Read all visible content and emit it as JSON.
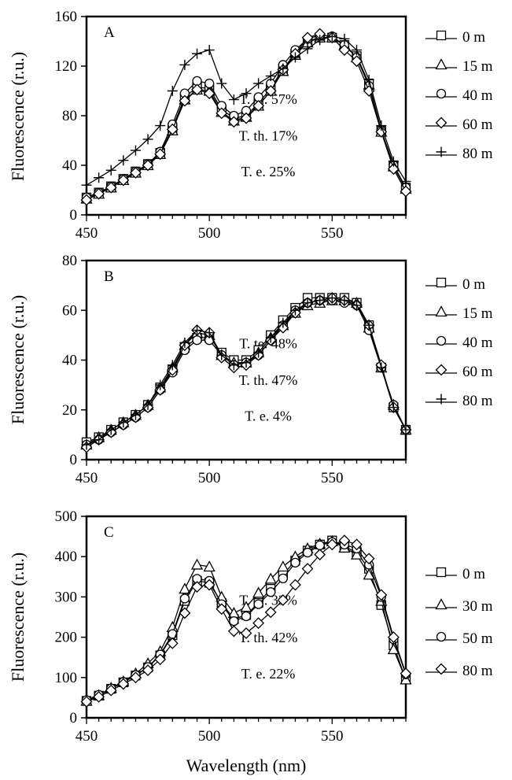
{
  "figure": {
    "xlabel": "Wavelength (nm)"
  },
  "chart_data": [
    {
      "type": "line",
      "panel": "A",
      "ylabel": "Fluorescence (r.u.)",
      "xlim": [
        450,
        580
      ],
      "ylim": [
        0,
        160
      ],
      "xticks": [
        450,
        500,
        550
      ],
      "yticks": [
        0,
        40,
        80,
        120,
        160
      ],
      "annotations": [
        "T. te. 57%",
        "T. th. 17%",
        "T. e. 25%"
      ],
      "x": [
        450,
        455,
        460,
        465,
        470,
        475,
        480,
        485,
        490,
        495,
        500,
        505,
        510,
        515,
        520,
        525,
        530,
        535,
        540,
        545,
        550,
        555,
        560,
        565,
        570,
        575,
        580
      ],
      "series": [
        {
          "name": "0 m",
          "marker": "square",
          "values": [
            14,
            18,
            23,
            29,
            35,
            41,
            50,
            70,
            95,
            103,
            102,
            85,
            78,
            80,
            90,
            102,
            118,
            130,
            140,
            143,
            143,
            137,
            128,
            106,
            68,
            40,
            22
          ]
        },
        {
          "name": "15 m",
          "marker": "triangle",
          "values": [
            13,
            17,
            22,
            28,
            34,
            40,
            49,
            68,
            93,
            101,
            100,
            83,
            76,
            79,
            88,
            100,
            116,
            129,
            139,
            143,
            143,
            137,
            127,
            105,
            67,
            39,
            21
          ]
        },
        {
          "name": "40 m",
          "marker": "circle",
          "values": [
            14,
            18,
            23,
            29,
            35,
            41,
            51,
            73,
            98,
            108,
            106,
            88,
            80,
            84,
            95,
            106,
            121,
            133,
            142,
            145,
            144,
            137,
            127,
            104,
            68,
            40,
            22
          ]
        },
        {
          "name": "60 m",
          "marker": "diamond",
          "values": [
            12,
            17,
            22,
            28,
            34,
            40,
            49,
            69,
            92,
            101,
            98,
            82,
            75,
            78,
            88,
            100,
            117,
            130,
            143,
            146,
            143,
            133,
            124,
            100,
            67,
            37,
            19
          ]
        },
        {
          "name": "80 m",
          "marker": "plus",
          "values": [
            24,
            30,
            36,
            44,
            52,
            61,
            72,
            100,
            121,
            130,
            133,
            106,
            93,
            98,
            106,
            112,
            118,
            127,
            134,
            141,
            144,
            142,
            133,
            109,
            72,
            43,
            27
          ]
        }
      ]
    },
    {
      "type": "line",
      "panel": "B",
      "ylabel": "Fluorescence (r.u.)",
      "xlim": [
        450,
        580
      ],
      "ylim": [
        0,
        80
      ],
      "xticks": [
        450,
        500,
        550
      ],
      "yticks": [
        0,
        20,
        40,
        60,
        80
      ],
      "annotations": [
        "T. te. 48%",
        "T. th. 47%",
        "T. e. 4%"
      ],
      "x": [
        450,
        455,
        460,
        465,
        470,
        475,
        480,
        485,
        490,
        495,
        500,
        505,
        510,
        515,
        520,
        525,
        530,
        535,
        540,
        545,
        550,
        555,
        560,
        565,
        570,
        575,
        580
      ],
      "series": [
        {
          "name": "0 m",
          "marker": "square",
          "values": [
            7,
            9,
            12,
            15,
            18,
            22,
            29,
            36,
            45,
            49,
            49,
            43,
            40,
            40,
            44,
            50,
            56,
            61,
            65,
            65,
            65,
            65,
            63,
            54,
            37,
            21,
            12
          ]
        },
        {
          "name": "15 m",
          "marker": "triangle",
          "values": [
            6,
            9,
            12,
            15,
            18,
            22,
            29,
            37,
            46,
            51,
            50,
            42,
            39,
            39,
            43,
            49,
            54,
            59,
            62,
            63,
            64,
            64,
            63,
            53,
            37,
            22,
            12
          ]
        },
        {
          "name": "40 m",
          "marker": "circle",
          "values": [
            6,
            8,
            11,
            14,
            17,
            21,
            28,
            35,
            44,
            48,
            48,
            42,
            38,
            39,
            42,
            48,
            54,
            60,
            63,
            64,
            64,
            63,
            62,
            52,
            37,
            22,
            12
          ]
        },
        {
          "name": "60 m",
          "marker": "diamond",
          "values": [
            5,
            8,
            11,
            14,
            17,
            21,
            28,
            36,
            46,
            52,
            51,
            41,
            37,
            38,
            42,
            48,
            53,
            59,
            63,
            64,
            65,
            64,
            62,
            54,
            38,
            21,
            12
          ]
        },
        {
          "name": "80 m",
          "marker": "plus",
          "values": [
            6,
            8,
            12,
            15,
            18,
            22,
            30,
            38,
            47,
            52,
            51,
            42,
            38,
            39,
            43,
            49,
            55,
            60,
            63,
            64,
            65,
            64,
            62,
            54,
            37,
            21,
            12
          ]
        }
      ]
    },
    {
      "type": "line",
      "panel": "C",
      "ylabel": "Fluorescence (r.u.)",
      "xlim": [
        450,
        580
      ],
      "ylim": [
        0,
        500
      ],
      "xticks": [
        450,
        500,
        550
      ],
      "yticks": [
        0,
        100,
        200,
        300,
        400,
        500
      ],
      "annotations": [
        "T. te. 33%",
        "T. th. 42%",
        "T. e. 22%"
      ],
      "x": [
        450,
        455,
        460,
        465,
        470,
        475,
        480,
        485,
        490,
        495,
        500,
        505,
        510,
        515,
        520,
        525,
        530,
        535,
        540,
        545,
        550,
        555,
        560,
        565,
        570,
        575,
        580
      ],
      "series": [
        {
          "name": "0 m",
          "marker": "square",
          "values": [
            42,
            55,
            72,
            88,
            105,
            125,
            155,
            205,
            290,
            340,
            335,
            285,
            245,
            255,
            285,
            320,
            355,
            390,
            415,
            430,
            440,
            425,
            410,
            370,
            280,
            180,
            95
          ]
        },
        {
          "name": "30 m",
          "marker": "triangle",
          "values": [
            42,
            56,
            74,
            90,
            110,
            135,
            165,
            225,
            320,
            380,
            375,
            300,
            260,
            275,
            310,
            345,
            375,
            400,
            420,
            432,
            438,
            422,
            405,
            355,
            290,
            170,
            95
          ]
        },
        {
          "name": "50 m",
          "marker": "circle",
          "values": [
            44,
            57,
            73,
            89,
            106,
            126,
            157,
            208,
            296,
            345,
            340,
            282,
            240,
            252,
            282,
            312,
            346,
            385,
            410,
            428,
            436,
            430,
            420,
            380,
            300,
            195,
            108
          ]
        },
        {
          "name": "80 m",
          "marker": "diamond",
          "values": [
            40,
            52,
            68,
            84,
            100,
            118,
            145,
            185,
            260,
            325,
            330,
            270,
            215,
            210,
            235,
            262,
            292,
            330,
            370,
            405,
            430,
            440,
            430,
            395,
            305,
            200,
            110
          ]
        }
      ]
    }
  ]
}
